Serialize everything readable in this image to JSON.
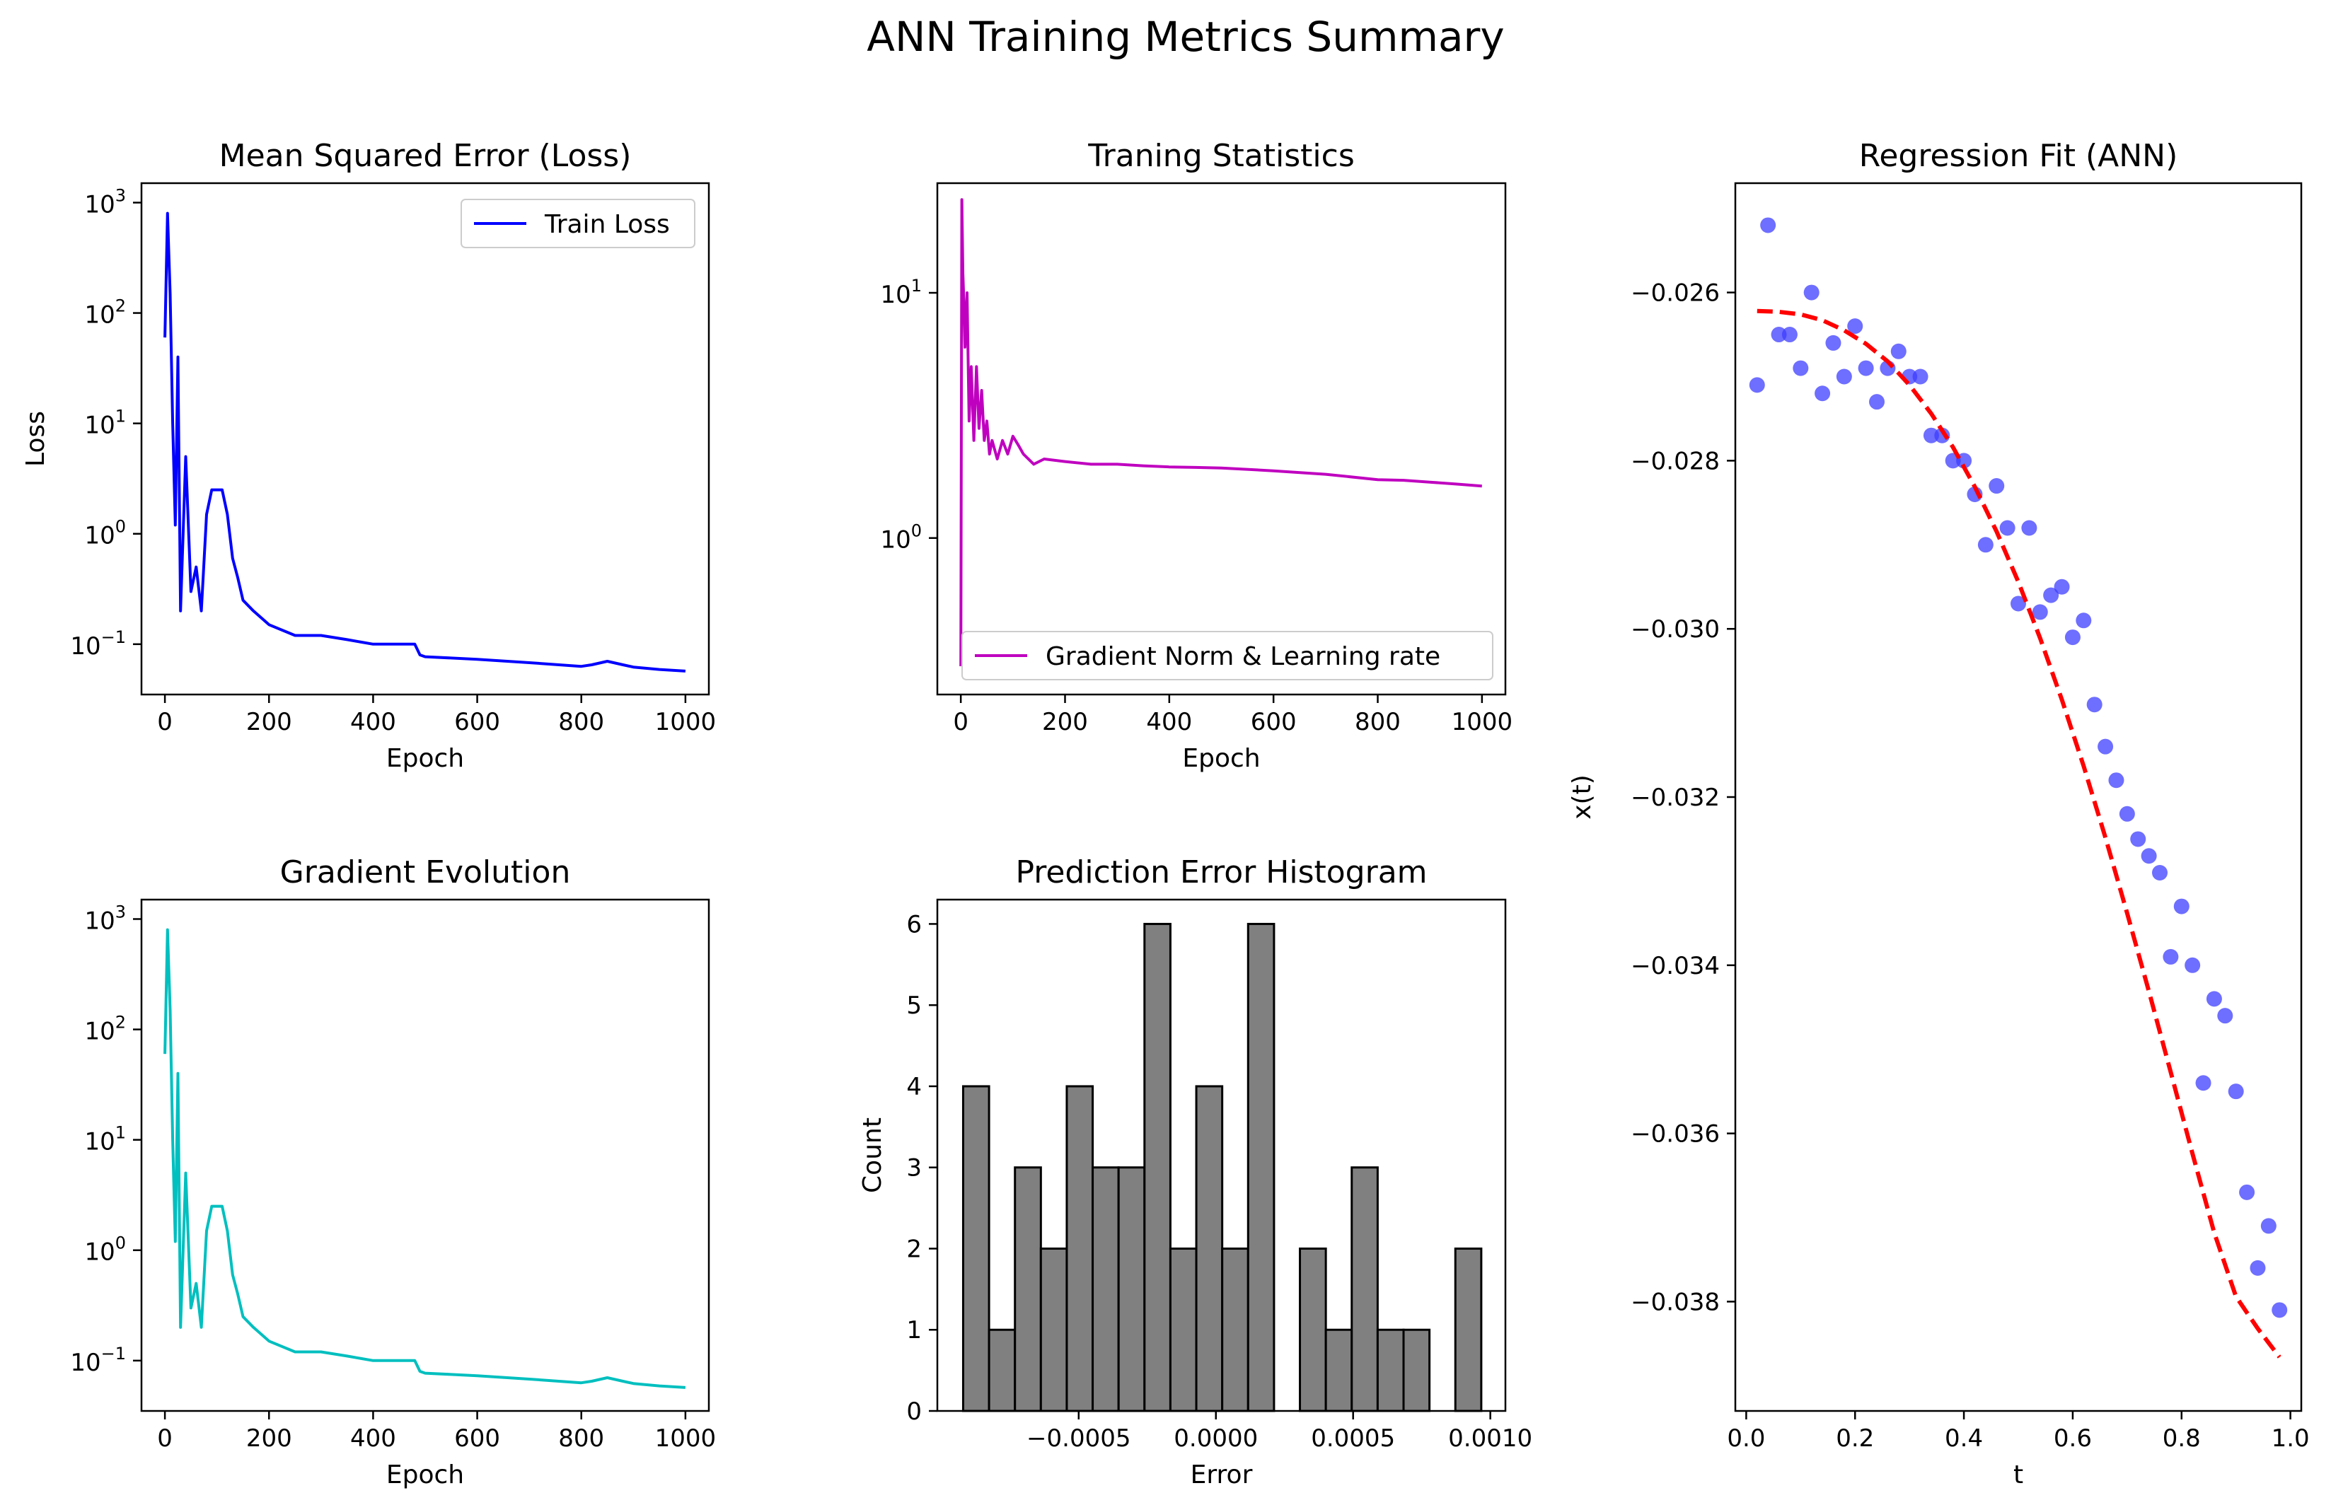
{
  "figure": {
    "suptitle": "ANN Training Metrics Summary"
  },
  "chart_data": [
    {
      "id": "loss",
      "type": "line",
      "title": "Mean Squared Error (Loss)",
      "xlabel": "Epoch",
      "ylabel": "Loss",
      "yscale": "log",
      "xlim": [
        -45,
        1045
      ],
      "ylim": [
        0.035,
        1500
      ],
      "xticks": [
        0,
        200,
        400,
        600,
        800,
        1000
      ],
      "yticks": [
        {
          "value": 0.1,
          "base": "10",
          "exp": "−1"
        },
        {
          "value": 1,
          "base": "10",
          "exp": "0"
        },
        {
          "value": 10,
          "base": "10",
          "exp": "1"
        },
        {
          "value": 100,
          "base": "10",
          "exp": "2"
        },
        {
          "value": 1000,
          "base": "10",
          "exp": "3"
        }
      ],
      "legend": [
        "Train Loss"
      ],
      "legend_loc": "upper right",
      "series": [
        {
          "name": "Train Loss",
          "color": "#0000ff",
          "x": [
            0,
            5,
            10,
            15,
            20,
            25,
            30,
            40,
            50,
            60,
            70,
            80,
            90,
            100,
            110,
            120,
            130,
            140,
            150,
            170,
            200,
            250,
            300,
            350,
            400,
            450,
            480,
            490,
            500,
            600,
            700,
            800,
            820,
            850,
            880,
            900,
            950,
            1000
          ],
          "y": [
            60,
            800,
            150,
            10,
            1.2,
            40,
            0.2,
            5,
            0.3,
            0.5,
            0.2,
            1.5,
            2.5,
            2.5,
            2.5,
            1.5,
            0.6,
            0.4,
            0.25,
            0.2,
            0.15,
            0.12,
            0.12,
            0.11,
            0.1,
            0.1,
            0.1,
            0.08,
            0.077,
            0.073,
            0.068,
            0.063,
            0.065,
            0.07,
            0.065,
            0.062,
            0.059,
            0.057
          ]
        }
      ]
    },
    {
      "id": "stats",
      "type": "line",
      "title": "Traning Statistics",
      "xlabel": "Epoch",
      "ylabel": "",
      "yscale": "log",
      "xlim": [
        -45,
        1045
      ],
      "ylim": [
        0.23,
        28
      ],
      "xticks": [
        0,
        200,
        400,
        600,
        800,
        1000
      ],
      "yticks": [
        {
          "value": 1,
          "base": "10",
          "exp": "0"
        },
        {
          "value": 10,
          "base": "10",
          "exp": "1"
        }
      ],
      "legend": [
        "Gradient Norm & Learning rate"
      ],
      "legend_loc": "lower right",
      "series": [
        {
          "name": "Gradient Norm & Learning rate",
          "color": "#bf00bf",
          "x": [
            0,
            2,
            4,
            6,
            8,
            12,
            16,
            20,
            25,
            30,
            35,
            40,
            45,
            50,
            55,
            60,
            70,
            80,
            90,
            100,
            110,
            120,
            140,
            160,
            200,
            250,
            300,
            350,
            400,
            450,
            500,
            600,
            700,
            800,
            850,
            900,
            950,
            1000
          ],
          "y": [
            0.3,
            24,
            12,
            9,
            6,
            10,
            3,
            5,
            2.5,
            5,
            2.8,
            4,
            2.5,
            3,
            2.2,
            2.5,
            2.1,
            2.5,
            2.2,
            2.6,
            2.4,
            2.2,
            2.0,
            2.1,
            2.05,
            2.0,
            2.0,
            1.97,
            1.95,
            1.94,
            1.93,
            1.88,
            1.82,
            1.73,
            1.72,
            1.69,
            1.66,
            1.63
          ]
        }
      ]
    },
    {
      "id": "grad",
      "type": "line",
      "title": "Gradient Evolution",
      "xlabel": "Epoch",
      "ylabel": "",
      "yscale": "log",
      "xlim": [
        -45,
        1045
      ],
      "ylim": [
        0.035,
        1500
      ],
      "xticks": [
        0,
        200,
        400,
        600,
        800,
        1000
      ],
      "yticks": [
        {
          "value": 0.1,
          "base": "10",
          "exp": "−1"
        },
        {
          "value": 1,
          "base": "10",
          "exp": "0"
        },
        {
          "value": 10,
          "base": "10",
          "exp": "1"
        },
        {
          "value": 100,
          "base": "10",
          "exp": "2"
        },
        {
          "value": 1000,
          "base": "10",
          "exp": "3"
        }
      ],
      "legend": [],
      "legend_loc": "",
      "series": [
        {
          "name": "Gradient",
          "color": "#00bfbf",
          "x": [
            0,
            5,
            10,
            15,
            20,
            25,
            30,
            40,
            50,
            60,
            70,
            80,
            90,
            100,
            110,
            120,
            130,
            140,
            150,
            170,
            200,
            250,
            300,
            350,
            400,
            450,
            480,
            490,
            500,
            600,
            700,
            800,
            820,
            850,
            880,
            900,
            950,
            1000
          ],
          "y": [
            60,
            800,
            150,
            10,
            1.2,
            40,
            0.2,
            5,
            0.3,
            0.5,
            0.2,
            1.5,
            2.5,
            2.5,
            2.5,
            1.5,
            0.6,
            0.4,
            0.25,
            0.2,
            0.15,
            0.12,
            0.12,
            0.11,
            0.1,
            0.1,
            0.1,
            0.08,
            0.077,
            0.073,
            0.068,
            0.063,
            0.065,
            0.07,
            0.065,
            0.062,
            0.059,
            0.057
          ]
        }
      ]
    },
    {
      "id": "hist",
      "type": "bar",
      "title": "Prediction Error Histogram",
      "xlabel": "Error",
      "ylabel": "Count",
      "xlim": [
        -0.001015,
        0.001055
      ],
      "ylim": [
        0,
        6.3
      ],
      "xticks": [
        {
          "value": -0.0005,
          "label": "−0.0005"
        },
        {
          "value": 0,
          "label": "0.0000"
        },
        {
          "value": 0.0005,
          "label": "0.0005"
        },
        {
          "value": 0.001,
          "label": "0.0010"
        }
      ],
      "yticks": [
        0,
        1,
        2,
        3,
        4,
        5,
        6
      ],
      "bin_start": -0.000921,
      "bin_width": 9.44e-05,
      "values": [
        4,
        1,
        3,
        2,
        4,
        3,
        3,
        6,
        2,
        4,
        2,
        6,
        0,
        2,
        1,
        3,
        1,
        1,
        0,
        2
      ],
      "fill": "#808080",
      "edge": "#000000"
    },
    {
      "id": "reg",
      "type": "scatter",
      "title": "Regression Fit (ANN)",
      "xlabel": "t",
      "ylabel": "x(t)",
      "xlim": [
        -0.02,
        1.02
      ],
      "ylim": [
        -0.0393,
        -0.0247
      ],
      "xticks": [
        {
          "value": 0,
          "label": "0.0"
        },
        {
          "value": 0.2,
          "label": "0.2"
        },
        {
          "value": 0.4,
          "label": "0.4"
        },
        {
          "value": 0.6,
          "label": "0.6"
        },
        {
          "value": 0.8,
          "label": "0.8"
        },
        {
          "value": 1.0,
          "label": "1.0"
        }
      ],
      "yticks": [
        {
          "value": -0.026,
          "label": "−0.026"
        },
        {
          "value": -0.028,
          "label": "−0.028"
        },
        {
          "value": -0.03,
          "label": "−0.030"
        },
        {
          "value": -0.032,
          "label": "−0.032"
        },
        {
          "value": -0.034,
          "label": "−0.034"
        },
        {
          "value": -0.036,
          "label": "−0.036"
        },
        {
          "value": -0.038,
          "label": "−0.038"
        }
      ],
      "points": {
        "color": "#3d3dff",
        "x": [
          0.02,
          0.04,
          0.06,
          0.08,
          0.1,
          0.12,
          0.14,
          0.16,
          0.18,
          0.2,
          0.22,
          0.24,
          0.26,
          0.28,
          0.3,
          0.32,
          0.34,
          0.36,
          0.38,
          0.4,
          0.42,
          0.44,
          0.46,
          0.48,
          0.5,
          0.52,
          0.54,
          0.56,
          0.58,
          0.6,
          0.62,
          0.64,
          0.66,
          0.68,
          0.7,
          0.72,
          0.74,
          0.76,
          0.78,
          0.8,
          0.82,
          0.84,
          0.86,
          0.88,
          0.9,
          0.92,
          0.94,
          0.96,
          0.98
        ],
        "y": [
          -0.0271,
          -0.0252,
          -0.0265,
          -0.0265,
          -0.0269,
          -0.026,
          -0.0272,
          -0.0266,
          -0.027,
          -0.0264,
          -0.0269,
          -0.0273,
          -0.0269,
          -0.0267,
          -0.027,
          -0.027,
          -0.0277,
          -0.0277,
          -0.028,
          -0.028,
          -0.0284,
          -0.029,
          -0.0283,
          -0.0288,
          -0.0297,
          -0.0288,
          -0.0298,
          -0.0296,
          -0.0295,
          -0.0301,
          -0.0299,
          -0.0309,
          -0.0314,
          -0.0318,
          -0.0322,
          -0.0325,
          -0.0327,
          -0.0329,
          -0.0339,
          -0.0333,
          -0.034,
          -0.0354,
          -0.0344,
          -0.0346,
          -0.0355,
          -0.0367,
          -0.0376,
          -0.0371,
          -0.0381
        ]
      },
      "fit": {
        "color": "#ff0000",
        "x": [
          0.02,
          0.06,
          0.1,
          0.14,
          0.18,
          0.22,
          0.26,
          0.3,
          0.34,
          0.38,
          0.42,
          0.46,
          0.5,
          0.54,
          0.58,
          0.62,
          0.66,
          0.7,
          0.74,
          0.78,
          0.82,
          0.86,
          0.9,
          0.94,
          0.98
        ],
        "y": [
          -0.02622,
          -0.02623,
          -0.02626,
          -0.02633,
          -0.02645,
          -0.02661,
          -0.02682,
          -0.0271,
          -0.02744,
          -0.02784,
          -0.02831,
          -0.02884,
          -0.02944,
          -0.03011,
          -0.03084,
          -0.03163,
          -0.03248,
          -0.03338,
          -0.03431,
          -0.03527,
          -0.03624,
          -0.03718,
          -0.03794,
          -0.03832,
          -0.03866
        ]
      }
    }
  ]
}
